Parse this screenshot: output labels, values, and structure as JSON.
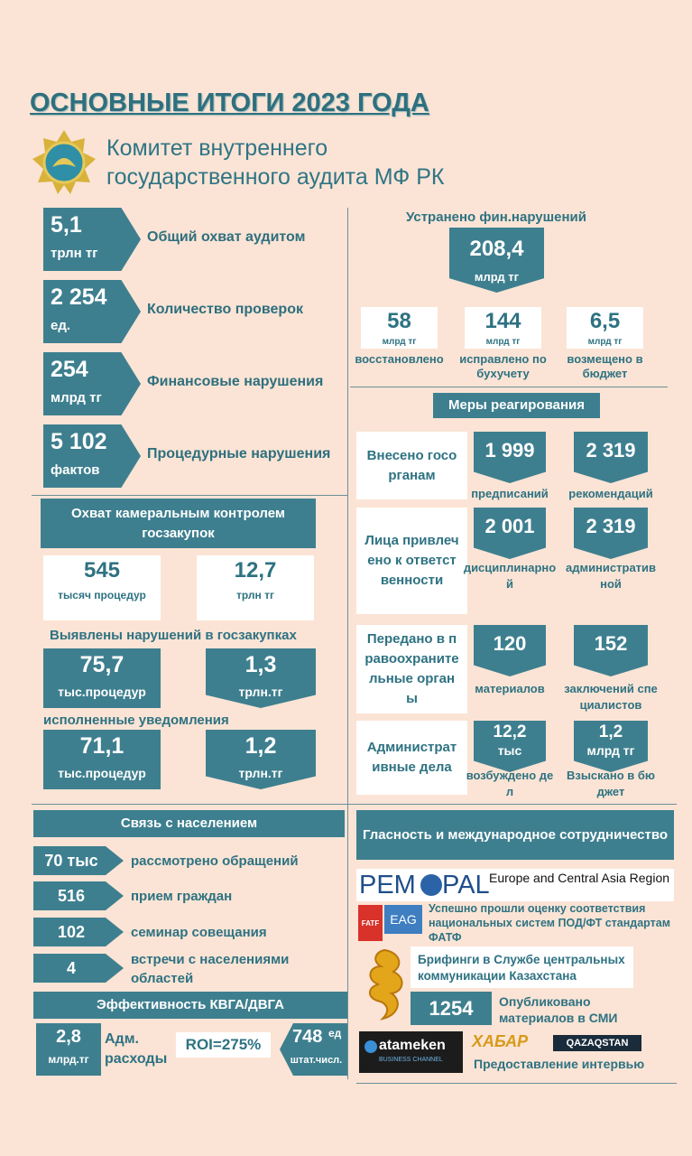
{
  "header": {
    "title": "ОСНОВНЫЕ ИТОГИ 2023 ГОДА",
    "org": "Комитет внутреннего государственного аудита МФ РК"
  },
  "summary": [
    {
      "value": "5,1",
      "unit": "трлн тг",
      "label": "Общий охват аудитом"
    },
    {
      "value": "2 254",
      "unit": "ед.",
      "label": "Количество проверок"
    },
    {
      "value": "254",
      "unit": "млрд тг",
      "label": "Финансовые нарушения"
    },
    {
      "value": "5 102",
      "unit": "фактов",
      "label": "Процедурные нарушения"
    }
  ],
  "eliminated": {
    "title": "Устранено фин.нарушений",
    "value": "208,4",
    "unit": "млрд тг",
    "parts": [
      {
        "value": "58",
        "unit": "млрд тг",
        "label": "восстановлено"
      },
      {
        "value": "144",
        "unit": "млрд тг",
        "label": "исправлено по бухучету"
      },
      {
        "value": "6,5",
        "unit": "млрд тг",
        "label": "возмещено в бюджет"
      }
    ]
  },
  "measures": {
    "title": "Меры реагирования",
    "rows": [
      {
        "label": "Внесено госорганам",
        "items": [
          {
            "value": "1 999",
            "label": "предписаний"
          },
          {
            "value": "2 319",
            "label": "рекомендаций"
          }
        ]
      },
      {
        "label": "Лица привлечено к ответственности",
        "items": [
          {
            "value": "2 001",
            "label": "дисциплинарной"
          },
          {
            "value": "2 319",
            "label": "административной"
          }
        ]
      },
      {
        "label": "Передано в правоохранительные органы",
        "items": [
          {
            "value": "120",
            "label": "материалов"
          },
          {
            "value": "152",
            "label": "заключений специалистов"
          }
        ]
      },
      {
        "label": "Административные дела",
        "items": [
          {
            "value": "12,2",
            "unit": "тыс",
            "label": "возбуждено дел"
          },
          {
            "value": "1,2",
            "unit": "млрд тг",
            "label": "Взыскано в бюджет"
          }
        ]
      }
    ]
  },
  "procurement": {
    "title": "Охват камеральным контролем госзакупок",
    "coverage": [
      {
        "value": "545",
        "unit": "тысяч процедур"
      },
      {
        "value": "12,7",
        "unit": "трлн тг"
      }
    ],
    "violations_title": "Выявлены нарушений в госзакупках",
    "violations": [
      {
        "value": "75,7",
        "unit": "тыс.процедур"
      },
      {
        "value": "1,3",
        "unit": "трлн.тг"
      }
    ],
    "notices_title": "исполненные уведомления",
    "notices": [
      {
        "value": "71,1",
        "unit": "тыс.процедур"
      },
      {
        "value": "1,2",
        "unit": "трлн.тг"
      }
    ]
  },
  "public": {
    "title": "Связь с населением",
    "items": [
      {
        "value": "70 тыс",
        "label": "рассмотрено обращений"
      },
      {
        "value": "516",
        "label": "прием граждан"
      },
      {
        "value": "102",
        "label": "семинар совещания"
      },
      {
        "value": "4",
        "label": "встречи с населениями областей"
      }
    ]
  },
  "efficiency": {
    "title": "Эффективность КВГА/ДВГА",
    "costs": {
      "value": "2,8",
      "unit": "млрд.тг",
      "label": "Адм. расходы"
    },
    "roi": "ROI=275%",
    "staff": {
      "value": "748",
      "unit": "ед",
      "note": "штат.числ."
    }
  },
  "publicity": {
    "title": "Гласность и международное сотрудничество",
    "pempal": {
      "left": "PEM",
      "right": "PAL",
      "region": "Europe and Central Asia Region"
    },
    "fatf": {
      "logos": [
        "FATF",
        "EAG"
      ],
      "text": "Успешно прошли оценку соответствия национальных систем ПОД/ФТ стандартам ФАТФ"
    },
    "briefing": "Брифинги в Службе центральных коммуникации Казахстана",
    "published": {
      "value": "1254",
      "label": "Опубликовано материалов в СМИ"
    },
    "media": {
      "logos": [
        "atameken",
        "BUSINESS CHANNEL",
        "ХАБАР",
        "QAZAQSTAN"
      ],
      "label": "Предоставление интервью"
    }
  }
}
